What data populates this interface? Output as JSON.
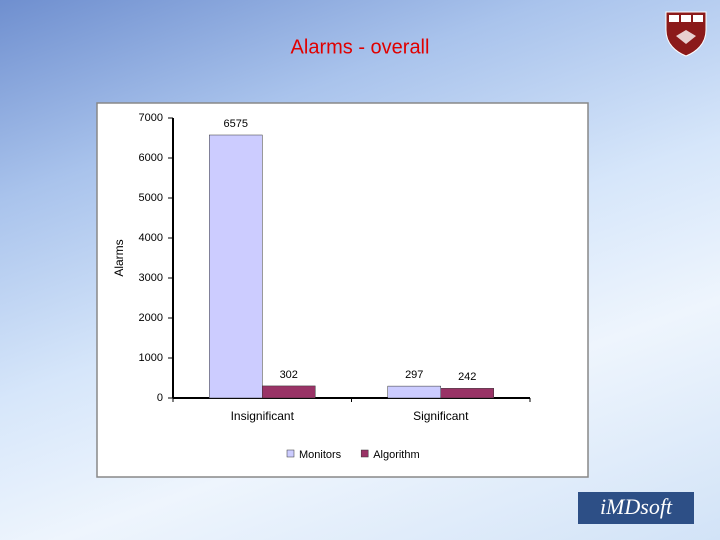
{
  "chart_data": {
    "type": "bar",
    "title": "Alarms - overall",
    "y_label": "Alarms",
    "categories": [
      "Insignificant",
      "Significant"
    ],
    "series": [
      {
        "name": "Monitors",
        "color": "#ccccff",
        "values": [
          6575,
          297
        ]
      },
      {
        "name": "Algorithm",
        "color": "#993366",
        "values": [
          302,
          242
        ]
      }
    ],
    "ylim": [
      0,
      7000
    ],
    "yticks": [
      0,
      1000,
      2000,
      3000,
      4000,
      5000,
      6000,
      7000
    ],
    "grid": false
  },
  "logo": "iMDsoft"
}
